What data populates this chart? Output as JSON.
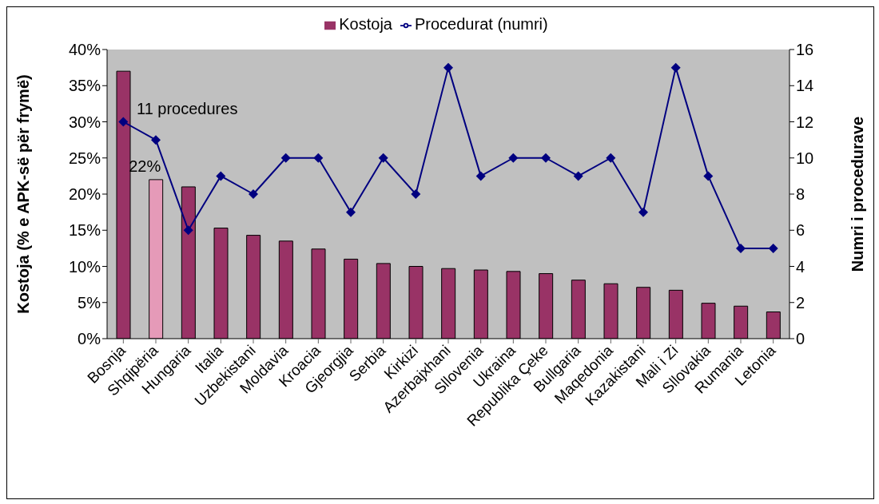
{
  "chart_data": {
    "type": "bar",
    "categories": [
      "Bosnja",
      "Shqipëria",
      "Hungaria",
      "Italia",
      "Uzbekistani",
      "Moldavia",
      "Kroacia",
      "Gjeorgjia",
      "Serbia",
      "Kirkizi",
      "Azerbajxhani",
      "Sllovenia",
      "Ukraina",
      "Republika Çeke",
      "Bullgaria",
      "Maqedonia",
      "Kazakistani",
      "Mali i Zi",
      "Sllovakia",
      "Rumania",
      "Letonia"
    ],
    "series": [
      {
        "name": "Kostoja",
        "color": "#993366",
        "colors": [
          "#993366",
          "#e59ab8",
          "#993366",
          "#993366",
          "#993366",
          "#993366",
          "#993366",
          "#993366",
          "#993366",
          "#993366",
          "#993366",
          "#993366",
          "#993366",
          "#993366",
          "#993366",
          "#993366",
          "#993366",
          "#993366",
          "#993366",
          "#993366",
          "#993366"
        ],
        "values": [
          37,
          22,
          21,
          15.3,
          14.3,
          13.5,
          12.4,
          11,
          10.4,
          10,
          9.7,
          9.5,
          9.3,
          9,
          8.1,
          7.6,
          7.1,
          6.7,
          4.9,
          4.5,
          3.7
        ],
        "value_labels": [
          null,
          "22%",
          null,
          null,
          null,
          null,
          null,
          null,
          null,
          null,
          null,
          null,
          null,
          null,
          null,
          null,
          null,
          null,
          null,
          null,
          null
        ]
      },
      {
        "name": "Procedurat (numri)",
        "type": "line",
        "axis": "y2",
        "color": "#000080",
        "marker": "diamond",
        "line_style": "solid",
        "values": [
          12,
          11,
          6,
          9,
          8,
          10,
          10,
          7,
          10,
          8,
          15,
          9,
          10,
          10,
          9,
          10,
          7,
          15,
          9,
          5,
          5
        ],
        "value_labels": [
          null,
          "11 procedures",
          null,
          null,
          null,
          null,
          null,
          null,
          null,
          null,
          null,
          null,
          null,
          null,
          null,
          null,
          null,
          null,
          null,
          null,
          null
        ]
      }
    ],
    "ylabel": "Kostoja (% e APK-së për frymë)",
    "y2label": "Numri i procedurave",
    "ylim": [
      0,
      40
    ],
    "yticks": [
      {
        "value": 0,
        "label": "0%"
      },
      {
        "value": 5,
        "label": "5%"
      },
      {
        "value": 10,
        "label": "10%"
      },
      {
        "value": 15,
        "label": "15%"
      },
      {
        "value": 20,
        "label": "20%"
      },
      {
        "value": 25,
        "label": "25%"
      },
      {
        "value": 30,
        "label": "30%"
      },
      {
        "value": 35,
        "label": "35%"
      },
      {
        "value": 40,
        "label": "40%"
      }
    ],
    "y2lim": [
      0,
      16
    ],
    "y2ticks": [
      0,
      2,
      4,
      6,
      8,
      10,
      12,
      14,
      16
    ],
    "legend": "top",
    "grid": false
  }
}
